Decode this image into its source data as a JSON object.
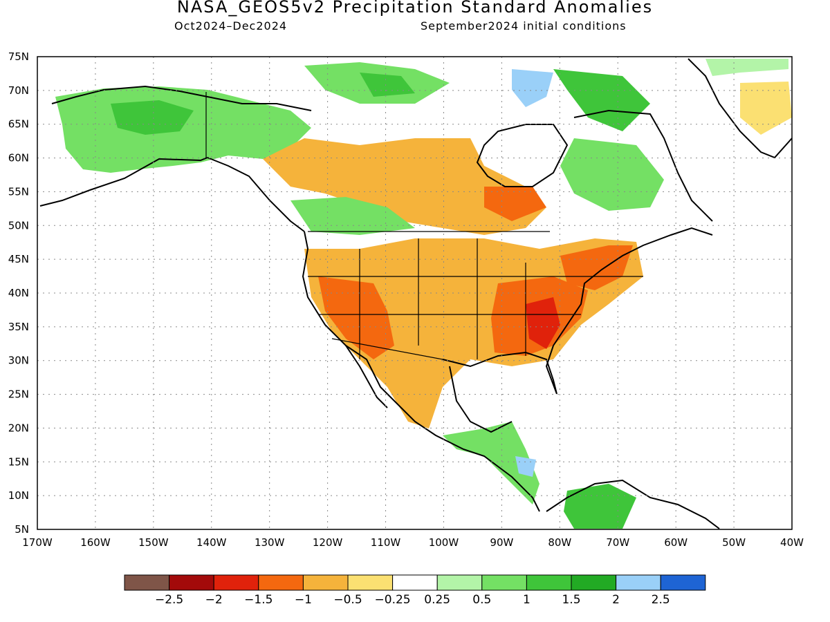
{
  "header": {
    "title": "NASA_GEOS5v2 Precipitation Standard Anomalies",
    "period": "Oct2024–Dec2024",
    "init": "September2024 initial conditions"
  },
  "map": {
    "lon_range": [
      -170,
      -40
    ],
    "lat_range": [
      5,
      75
    ],
    "lon_labels": [
      "170W",
      "160W",
      "150W",
      "140W",
      "130W",
      "120W",
      "110W",
      "100W",
      "90W",
      "80W",
      "70W",
      "60W",
      "50W",
      "40W"
    ],
    "lat_labels": [
      "5N",
      "10N",
      "15N",
      "20N",
      "25N",
      "30N",
      "35N",
      "40N",
      "45N",
      "50N",
      "55N",
      "60N",
      "65N",
      "70N",
      "75N"
    ],
    "grid": "dotted"
  },
  "colorbar": {
    "colors": [
      "#7f5548",
      "#a30a0a",
      "#e0220b",
      "#f4680f",
      "#f5b33b",
      "#fbe072",
      "#ffffff",
      "#b3f4a8",
      "#74e064",
      "#3fc53a",
      "#22aa24",
      "#9ad0f8",
      "#1e64d4"
    ],
    "labels": [
      "−2.5",
      "−2",
      "−1.5",
      "−1",
      "−0.5",
      "−0.25",
      "0.25",
      "0.5",
      "1",
      "1.5",
      "2",
      "2.5"
    ]
  }
}
